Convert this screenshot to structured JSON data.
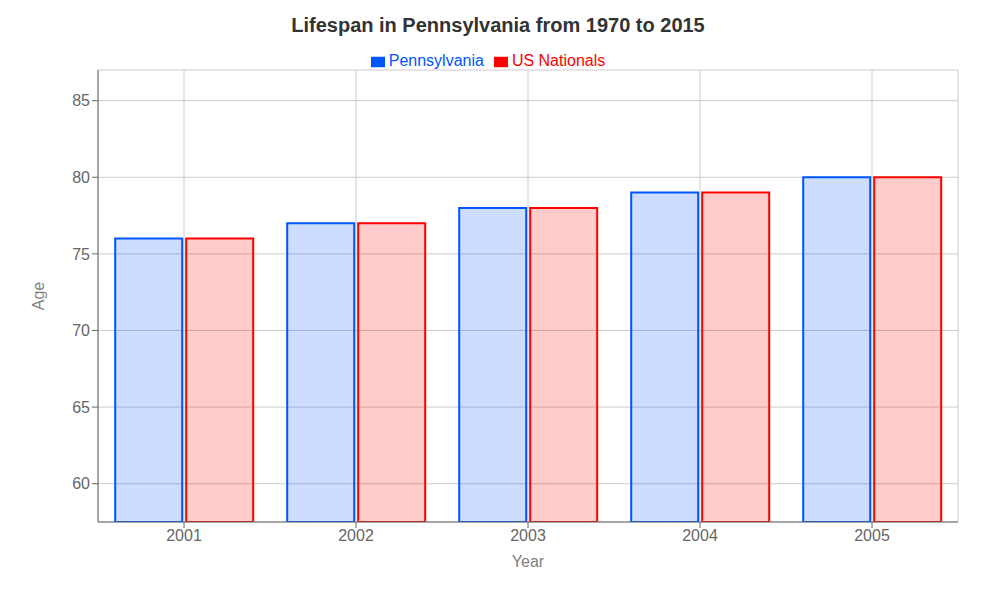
{
  "chart_data": {
    "type": "bar",
    "title": "Lifespan in Pennsylvania from 1970 to 2015",
    "x_label": "Year",
    "y_label": "Age",
    "categories": [
      "2001",
      "2002",
      "2003",
      "2004",
      "2005"
    ],
    "series": [
      {
        "name": "Pennsylvania",
        "color": "#0055ff",
        "values": [
          76,
          77,
          78,
          79,
          80
        ]
      },
      {
        "name": "US Nationals",
        "color": "#ff0000",
        "values": [
          76,
          77,
          78,
          79,
          80
        ]
      }
    ],
    "ylim": [
      57.5,
      87
    ],
    "yticks": [
      60,
      65,
      70,
      75,
      80,
      85
    ],
    "grid": true,
    "legend": "top"
  }
}
